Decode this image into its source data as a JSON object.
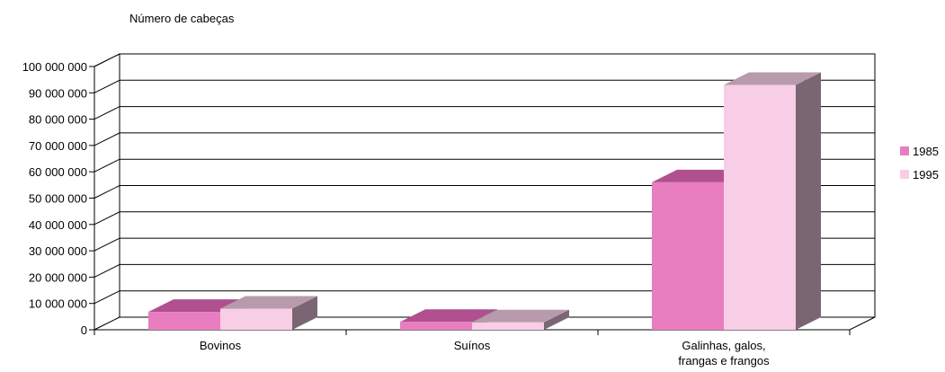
{
  "chart_data": {
    "type": "bar",
    "title": "",
    "ylabel": "Número de cabeças",
    "xlabel": "",
    "categories": [
      [
        "Bovinos"
      ],
      [
        "Suínos"
      ],
      [
        "Galinhas, galos,",
        "frangas e frangos"
      ]
    ],
    "series": [
      {
        "name": "1985",
        "values": [
          6800000,
          3000000,
          56000000
        ],
        "color": "#e87dbf",
        "top_color": "#b0508f",
        "side_color": "#7a6672"
      },
      {
        "name": "1995",
        "values": [
          8000000,
          2800000,
          93000000
        ],
        "color": "#f8cde6",
        "top_color": "#b89aad",
        "side_color": "#7a6672"
      }
    ],
    "ylim": [
      0,
      100000000
    ],
    "yticks": [
      0,
      10000000,
      20000000,
      30000000,
      40000000,
      50000000,
      60000000,
      70000000,
      80000000,
      90000000,
      100000000
    ],
    "ytick_labels": [
      "0",
      "10 000 000",
      "20 000 000",
      "30 000 000",
      "40 000 000",
      "50 000 000",
      "60 000 000",
      "70 000 000",
      "80 000 000",
      "90 000 000",
      "100 000 000"
    ],
    "grid": true,
    "legend_position": "right",
    "three_d": true
  }
}
